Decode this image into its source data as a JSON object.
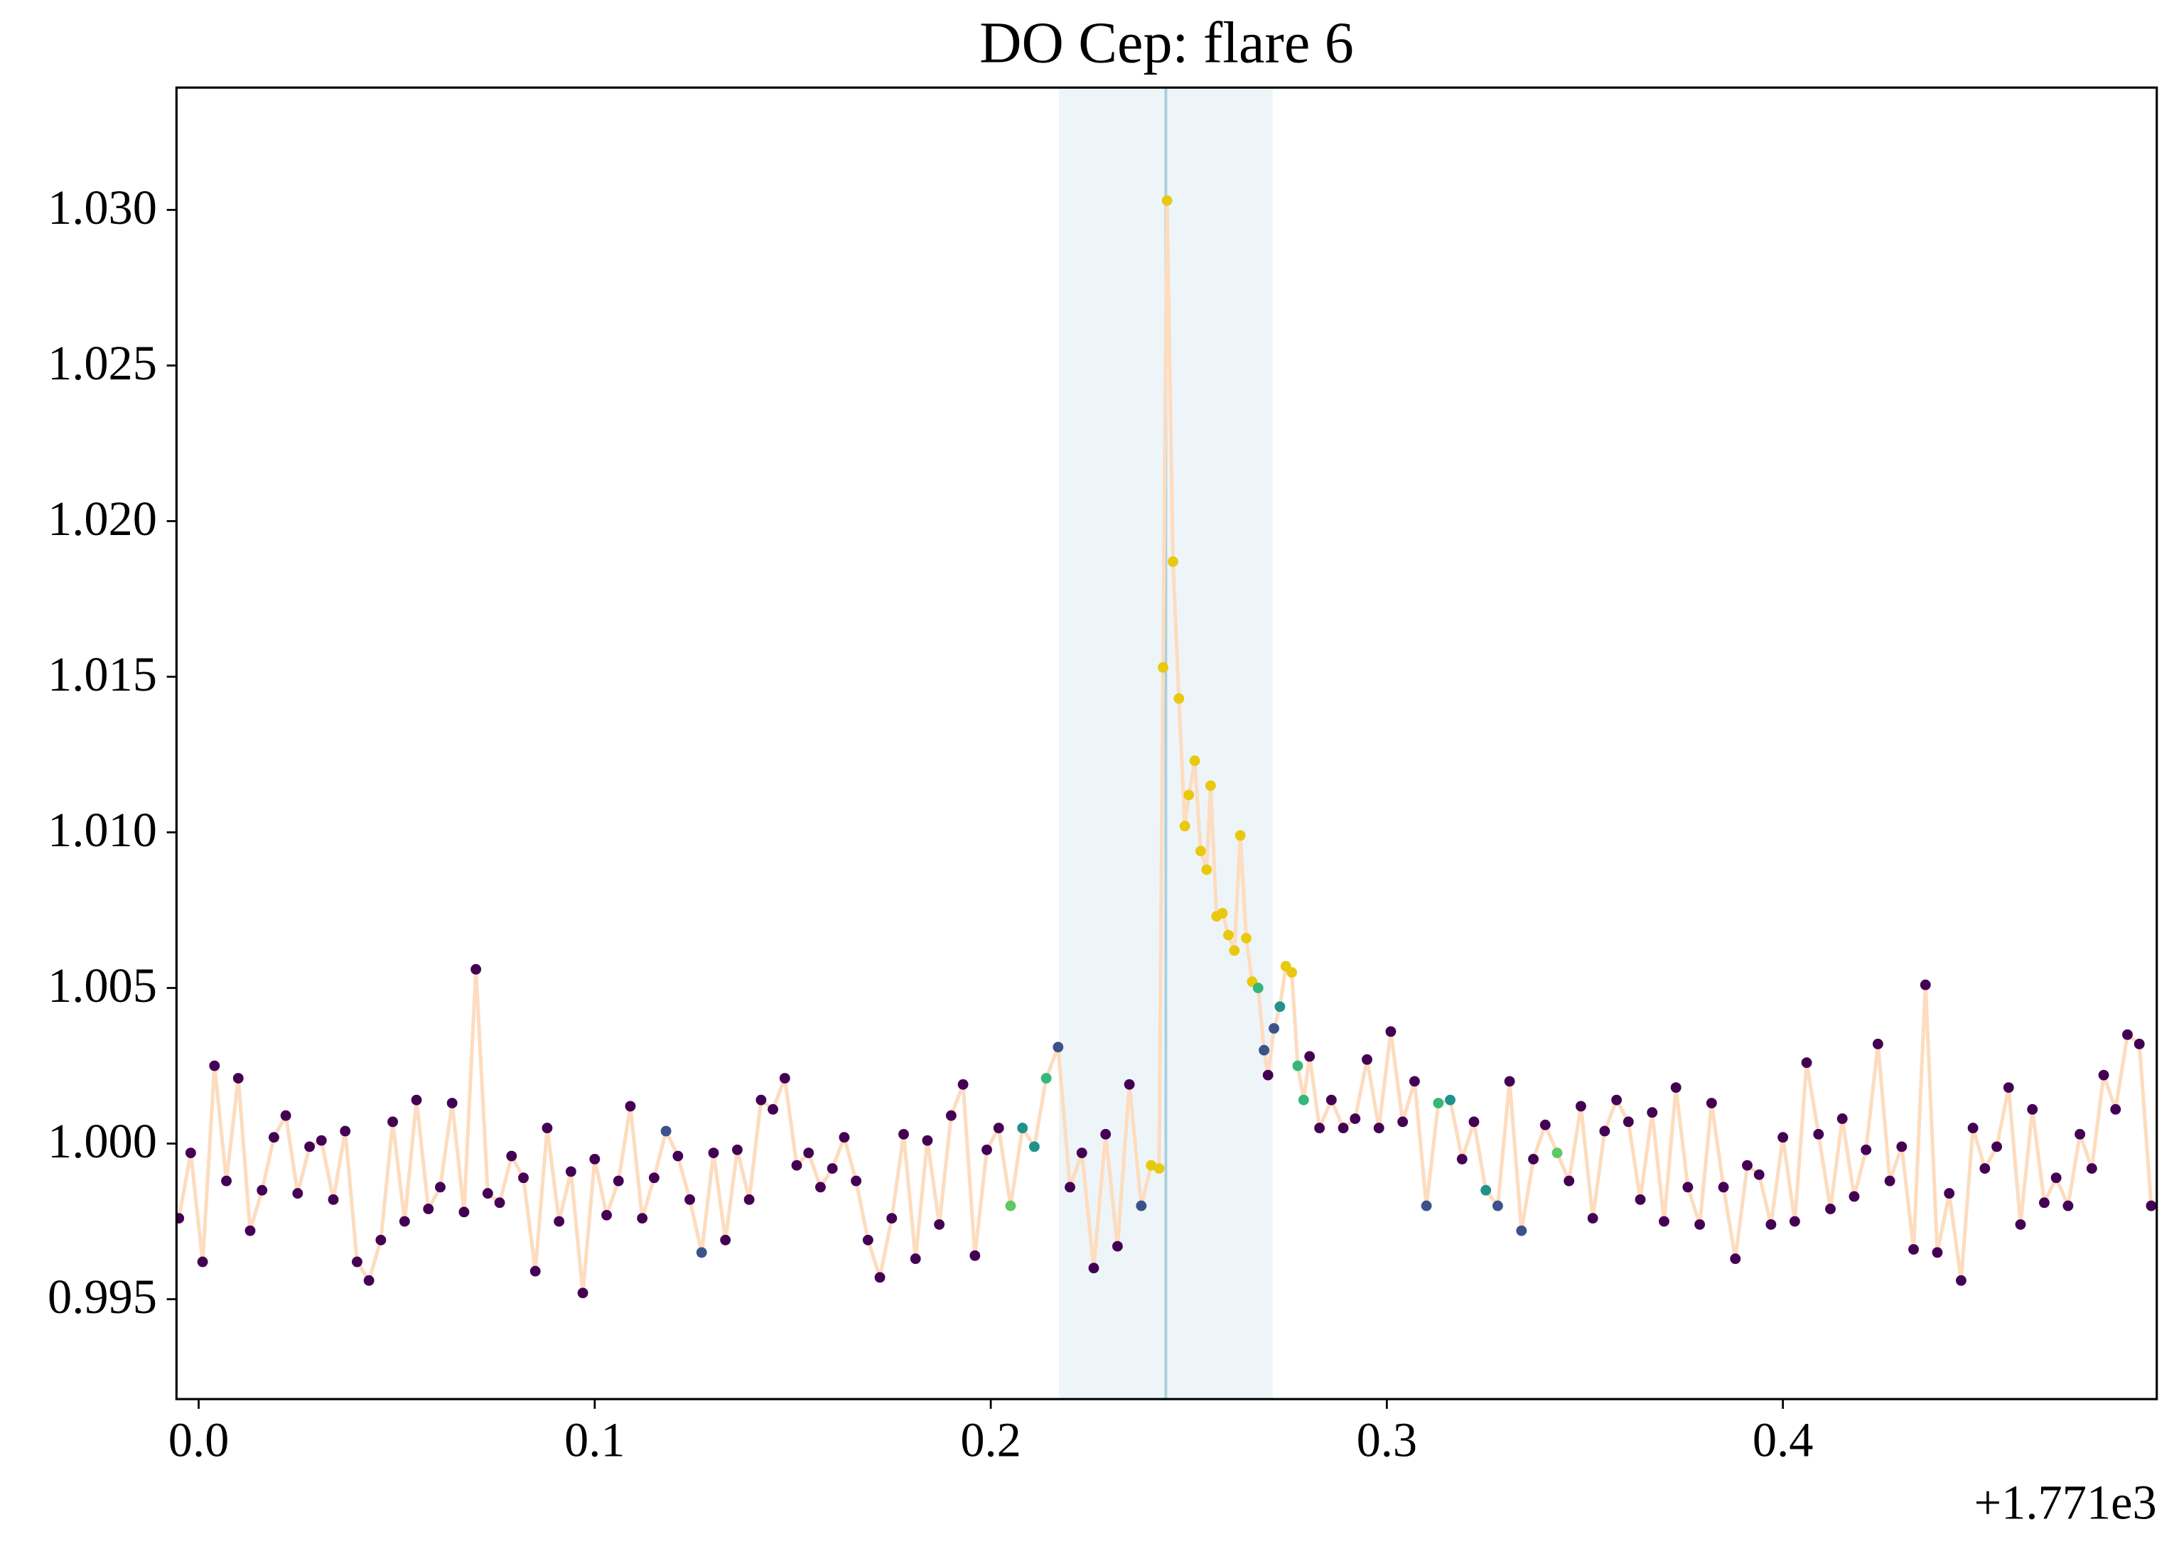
{
  "chart_data": {
    "type": "scatter",
    "title": "DO Cep: flare 6",
    "x_offset_label": "+1.771e3",
    "xlim": [
      -0.0056,
      0.4944
    ],
    "ylim": [
      0.99179,
      1.03393
    ],
    "xticks": [
      {
        "value": 0,
        "label": "0.0"
      },
      0.1,
      0.2,
      0.3,
      0.4
    ],
    "yticks": [
      0.995,
      {
        "value": 1.0,
        "label": "1.000"
      },
      1.005,
      {
        "value": 1.01,
        "label": "1.010"
      },
      1.015,
      {
        "value": 1.02,
        "label": "1.020"
      },
      1.025,
      {
        "value": 1.03,
        "label": "1.030"
      }
    ],
    "grid": false,
    "span": [
      0.2172,
      0.2712
    ],
    "span_color": "#eef5f9",
    "vline": 0.2442,
    "vline_color": "#a9cfdd",
    "series": [
      {
        "line_color": "#fddcbf",
        "x": [
          -0.005,
          -0.002,
          0.001,
          0.004,
          0.007,
          0.01,
          0.013,
          0.016,
          0.019,
          0.022,
          0.025,
          0.028,
          0.031,
          0.034,
          0.037,
          0.04,
          0.043,
          0.046,
          0.049,
          0.052,
          0.055,
          0.058,
          0.061,
          0.064,
          0.067,
          0.07,
          0.073,
          0.076,
          0.079,
          0.082,
          0.085,
          0.088,
          0.091,
          0.094,
          0.097,
          0.1,
          0.103,
          0.106,
          0.109,
          0.112,
          0.115,
          0.118,
          0.121,
          0.124,
          0.127,
          0.13,
          0.133,
          0.136,
          0.139,
          0.142,
          0.145,
          0.148,
          0.151,
          0.154,
          0.157,
          0.16,
          0.163,
          0.166,
          0.169,
          0.172,
          0.175,
          0.178,
          0.181,
          0.184,
          0.187,
          0.19,
          0.193,
          0.196,
          0.199,
          0.202,
          0.205,
          0.208,
          0.211,
          0.214,
          0.217,
          0.22,
          0.223,
          0.226,
          0.229,
          0.232,
          0.235,
          0.238,
          0.2405,
          0.2425,
          0.2435,
          0.2445,
          0.246,
          0.2475,
          0.249,
          0.25,
          0.2515,
          0.253,
          0.2545,
          0.2555,
          0.257,
          0.2585,
          0.26,
          0.2615,
          0.263,
          0.2645,
          0.266,
          0.2675,
          0.269,
          0.27,
          0.2715,
          0.273,
          0.2745,
          0.276,
          0.2775,
          0.279,
          0.2805,
          0.283,
          0.286,
          0.289,
          0.292,
          0.295,
          0.298,
          0.301,
          0.304,
          0.307,
          0.31,
          0.313,
          0.316,
          0.319,
          0.322,
          0.325,
          0.328,
          0.331,
          0.334,
          0.337,
          0.34,
          0.343,
          0.346,
          0.349,
          0.352,
          0.355,
          0.358,
          0.361,
          0.364,
          0.367,
          0.37,
          0.373,
          0.376,
          0.379,
          0.382,
          0.385,
          0.388,
          0.391,
          0.394,
          0.397,
          0.4,
          0.403,
          0.406,
          0.409,
          0.412,
          0.415,
          0.418,
          0.421,
          0.424,
          0.427,
          0.43,
          0.433,
          0.436,
          0.439,
          0.442,
          0.445,
          0.448,
          0.451,
          0.454,
          0.457,
          0.46,
          0.463,
          0.466,
          0.469,
          0.472,
          0.475,
          0.478,
          0.481,
          0.484,
          0.487,
          0.49,
          0.493
        ],
        "values": [
          0.9976,
          0.9997,
          0.9962,
          1.0025,
          0.9988,
          1.0021,
          0.9972,
          0.9985,
          1.0002,
          1.0009,
          0.9984,
          0.9999,
          1.0001,
          0.9982,
          1.0004,
          0.9962,
          0.9956,
          0.9969,
          1.0007,
          0.9975,
          1.0014,
          0.9979,
          0.9986,
          1.0013,
          0.9978,
          1.0056,
          0.9984,
          0.9981,
          0.9996,
          0.9989,
          0.9959,
          1.0005,
          0.9975,
          0.9991,
          0.9952,
          0.9995,
          0.9977,
          0.9988,
          1.0012,
          0.9976,
          0.9989,
          1.0004,
          0.9996,
          0.9982,
          0.9965,
          0.9997,
          0.9969,
          0.9998,
          0.9982,
          1.0014,
          1.0011,
          1.0021,
          0.9993,
          0.9997,
          0.9986,
          0.9992,
          1.0002,
          0.9988,
          0.9969,
          0.9957,
          0.9976,
          1.0003,
          0.9963,
          1.0001,
          0.9974,
          1.0009,
          1.0019,
          0.9964,
          0.9998,
          1.0005,
          0.998,
          1.0005,
          0.9999,
          1.0021,
          1.0031,
          0.9986,
          0.9997,
          0.996,
          1.0003,
          0.9967,
          1.0019,
          0.998,
          0.9993,
          0.9992,
          1.0153,
          1.0303,
          1.0187,
          1.0143,
          1.0102,
          1.0112,
          1.0123,
          1.0094,
          1.0088,
          1.0115,
          1.0073,
          1.0074,
          1.0067,
          1.0062,
          1.0099,
          1.0066,
          1.0052,
          1.005,
          1.003,
          1.0022,
          1.0037,
          1.0044,
          1.0057,
          1.0055,
          1.0025,
          1.0014,
          1.0028,
          1.0005,
          1.0014,
          1.0005,
          1.0008,
          1.0027,
          1.0005,
          1.0036,
          1.0007,
          1.002,
          0.998,
          1.0013,
          1.0014,
          0.9995,
          1.0007,
          0.9985,
          0.998,
          1.002,
          0.9972,
          0.9995,
          1.0006,
          0.9997,
          0.9988,
          1.0012,
          0.9976,
          1.0004,
          1.0014,
          1.0007,
          0.9982,
          1.001,
          0.9975,
          1.0018,
          0.9986,
          0.9974,
          1.0013,
          0.9986,
          0.9963,
          0.9993,
          0.999,
          0.9974,
          1.0002,
          0.9975,
          1.0026,
          1.0003,
          0.9979,
          1.0008,
          0.9983,
          0.9998,
          1.0032,
          0.9988,
          0.9999,
          0.9966,
          1.0051,
          0.9965,
          0.9984,
          0.9956,
          1.0005,
          0.9992,
          0.9999,
          1.0018,
          0.9974,
          1.0011,
          0.9981,
          0.9989,
          0.998,
          1.0003,
          0.9992,
          1.0022,
          1.0011,
          1.0035,
          1.0032,
          0.998
        ],
        "colors": [
          "#440154",
          "#440154",
          "#440154",
          "#440154",
          "#440154",
          "#440154",
          "#440154",
          "#440154",
          "#440154",
          "#440154",
          "#440154",
          "#440154",
          "#440154",
          "#440154",
          "#440154",
          "#440154",
          "#440154",
          "#440154",
          "#440154",
          "#440154",
          "#440154",
          "#440154",
          "#440154",
          "#440154",
          "#440154",
          "#440154",
          "#440154",
          "#440154",
          "#440154",
          "#440154",
          "#440154",
          "#440154",
          "#440154",
          "#440154",
          "#440154",
          "#440154",
          "#440154",
          "#440154",
          "#440154",
          "#440154",
          "#440154",
          "#3b528b",
          "#440154",
          "#440154",
          "#3b528b",
          "#440154",
          "#440154",
          "#440154",
          "#440154",
          "#440154",
          "#440154",
          "#440154",
          "#440154",
          "#440154",
          "#440154",
          "#440154",
          "#440154",
          "#440154",
          "#440154",
          "#440154",
          "#440154",
          "#440154",
          "#440154",
          "#440154",
          "#440154",
          "#440154",
          "#440154",
          "#440154",
          "#440154",
          "#440154",
          "#5ec962",
          "#21918c",
          "#21918c",
          "#35b779",
          "#3b528b",
          "#440154",
          "#440154",
          "#440154",
          "#440154",
          "#440154",
          "#440154",
          "#3b528b",
          "#e8c90f",
          "#e8c90f",
          "#e8c90f",
          "#e8c90f",
          "#e8c90f",
          "#e8c90f",
          "#e8c90f",
          "#e8c90f",
          "#e8c90f",
          "#e8c90f",
          "#e8c90f",
          "#e8c90f",
          "#e8c90f",
          "#e8c90f",
          "#e8c90f",
          "#e8c90f",
          "#e8c90f",
          "#e8c90f",
          "#e8c90f",
          "#35b779",
          "#3b528b",
          "#440154",
          "#3b528b",
          "#21918c",
          "#e8c90f",
          "#e8c90f",
          "#35b779",
          "#35b779",
          "#440154",
          "#440154",
          "#440154",
          "#440154",
          "#440154",
          "#440154",
          "#440154",
          "#440154",
          "#440154",
          "#440154",
          "#3b528b",
          "#35b779",
          "#21918c",
          "#440154",
          "#440154",
          "#21918c",
          "#3b528b",
          "#440154",
          "#3b528b",
          "#440154",
          "#440154",
          "#5ec962",
          "#440154",
          "#440154",
          "#440154",
          "#440154",
          "#440154",
          "#440154",
          "#440154",
          "#440154",
          "#440154",
          "#440154",
          "#440154",
          "#440154",
          "#440154",
          "#440154",
          "#440154",
          "#440154",
          "#440154",
          "#440154",
          "#440154",
          "#440154",
          "#440154",
          "#440154",
          "#440154",
          "#440154",
          "#440154",
          "#440154",
          "#440154",
          "#440154",
          "#440154",
          "#440154",
          "#440154",
          "#440154",
          "#440154",
          "#440154",
          "#440154",
          "#440154",
          "#440154",
          "#440154",
          "#440154",
          "#440154",
          "#440154",
          "#440154",
          "#440154",
          "#440154",
          "#440154",
          "#440154",
          "#440154",
          "#440154",
          "#440154",
          "#440154"
        ]
      }
    ]
  }
}
